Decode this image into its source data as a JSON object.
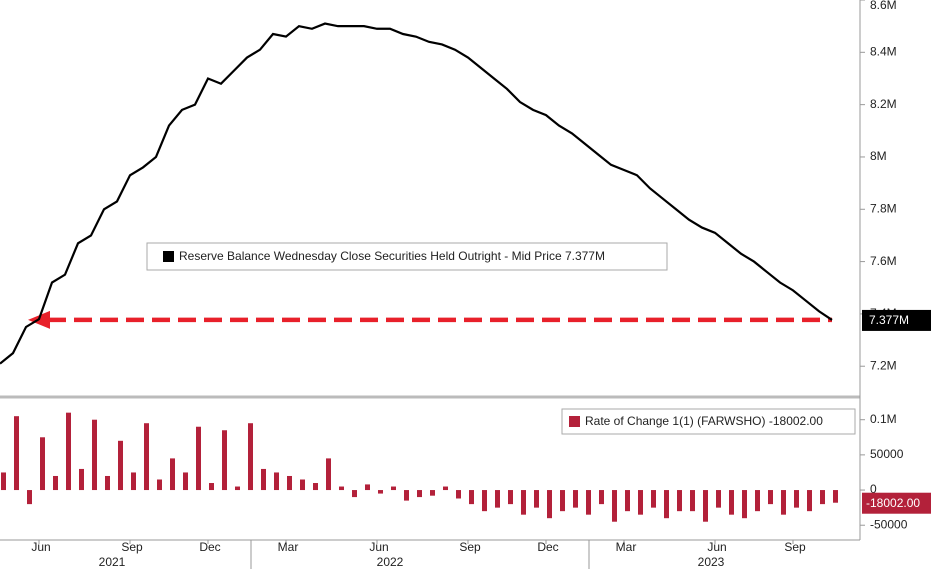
{
  "chart_data": [
    {
      "type": "line",
      "series": [
        {
          "name": "Reserve Balance Wednesday Close Securities Held Outright - Mid Price 7.377M",
          "color": "#000000",
          "values": [
            7.21,
            7.25,
            7.35,
            7.38,
            7.52,
            7.55,
            7.67,
            7.7,
            7.8,
            7.83,
            7.93,
            7.96,
            8.0,
            8.12,
            8.18,
            8.2,
            8.3,
            8.28,
            8.33,
            8.38,
            8.41,
            8.47,
            8.46,
            8.5,
            8.49,
            8.51,
            8.5,
            8.5,
            8.5,
            8.49,
            8.49,
            8.47,
            8.46,
            8.44,
            8.43,
            8.41,
            8.38,
            8.34,
            8.3,
            8.26,
            8.21,
            8.18,
            8.16,
            8.12,
            8.09,
            8.05,
            8.01,
            7.97,
            7.95,
            7.93,
            7.88,
            7.84,
            7.8,
            7.76,
            7.73,
            7.71,
            7.67,
            7.63,
            7.6,
            7.56,
            7.52,
            7.49,
            7.45,
            7.41,
            7.377
          ],
          "value_labels": [
            null,
            null,
            null,
            null,
            null,
            null,
            null,
            null,
            null,
            null,
            null,
            null,
            null,
            null,
            null,
            null,
            null,
            null,
            null,
            null,
            null,
            null,
            null,
            null,
            null,
            null,
            null,
            null,
            null,
            null,
            null,
            null,
            null,
            null,
            null,
            null,
            null,
            null,
            null,
            null,
            null,
            null,
            null,
            null,
            null,
            null,
            null,
            null,
            null,
            null,
            null,
            null,
            null,
            null,
            null,
            null,
            null,
            null,
            null,
            null,
            null,
            null,
            null,
            null,
            "7.377M"
          ]
        }
      ],
      "ylim": [
        7.09,
        8.6
      ],
      "yticks": [
        {
          "value": 7.2,
          "label": "7.2M"
        },
        {
          "value": 7.4,
          "label": "7.4M"
        },
        {
          "value": 7.6,
          "label": "7.6M"
        },
        {
          "value": 7.8,
          "label": "7.8M"
        },
        {
          "value": 8,
          "label": "8M"
        },
        {
          "value": 8.2,
          "label": "8.2M"
        },
        {
          "value": 8.4,
          "label": "8.4M"
        },
        {
          "value": 8.6,
          "label": "8.6M"
        }
      ]
    },
    {
      "type": "bar",
      "categories": [
        null,
        null,
        null,
        "Jun",
        null,
        null,
        null,
        null,
        null,
        null,
        "Sep",
        null,
        null,
        null,
        null,
        null,
        "Dec",
        null,
        null,
        null,
        null,
        null,
        "Mar",
        null,
        null,
        null,
        null,
        null,
        null,
        "Jun",
        null,
        null,
        null,
        null,
        null,
        null,
        "Sep",
        null,
        null,
        null,
        null,
        null,
        "Dec",
        null,
        null,
        null,
        null,
        null,
        "Mar",
        null,
        null,
        null,
        null,
        null,
        null,
        "Jun",
        null,
        null,
        null,
        null,
        null,
        "Sep",
        null,
        null,
        null
      ],
      "years": [
        "2021",
        "2022",
        "2023"
      ],
      "series": [
        {
          "name": "Rate of Change 1(1) (FARWSHO) -18002.00",
          "color": "#b3213a",
          "values": [
            25000,
            105000,
            -20000,
            75000,
            20000,
            110000,
            30000,
            100000,
            20000,
            70000,
            25000,
            95000,
            15000,
            45000,
            25000,
            90000,
            10000,
            85000,
            5000,
            95000,
            30000,
            25000,
            20000,
            15000,
            10000,
            45000,
            5000,
            -10000,
            8000,
            -5000,
            5000,
            -15000,
            -10000,
            -8000,
            5000,
            -12000,
            -20000,
            -30000,
            -25000,
            -20000,
            -35000,
            -25000,
            -40000,
            -30000,
            -25000,
            -35000,
            -20000,
            -45000,
            -30000,
            -35000,
            -25000,
            -40000,
            -30000,
            -30000,
            -45000,
            -25000,
            -35000,
            -40000,
            -30000,
            -20000,
            -35000,
            -25000,
            -30000,
            -20000,
            -18002
          ],
          "value_labels": [
            null,
            null,
            null,
            null,
            null,
            null,
            null,
            null,
            null,
            null,
            null,
            null,
            null,
            null,
            null,
            null,
            null,
            null,
            null,
            null,
            null,
            null,
            null,
            null,
            null,
            null,
            null,
            null,
            null,
            null,
            null,
            null,
            null,
            null,
            null,
            null,
            null,
            null,
            null,
            null,
            null,
            null,
            null,
            null,
            null,
            null,
            null,
            null,
            null,
            null,
            null,
            null,
            null,
            null,
            null,
            null,
            null,
            null,
            null,
            null,
            null,
            null,
            null,
            null,
            "-18002.00"
          ]
        }
      ],
      "ylim": [
        -71000,
        128000
      ],
      "yticks": [
        {
          "value": 100000,
          "label": "0.1M"
        },
        50000,
        0,
        -50000
      ]
    }
  ]
}
